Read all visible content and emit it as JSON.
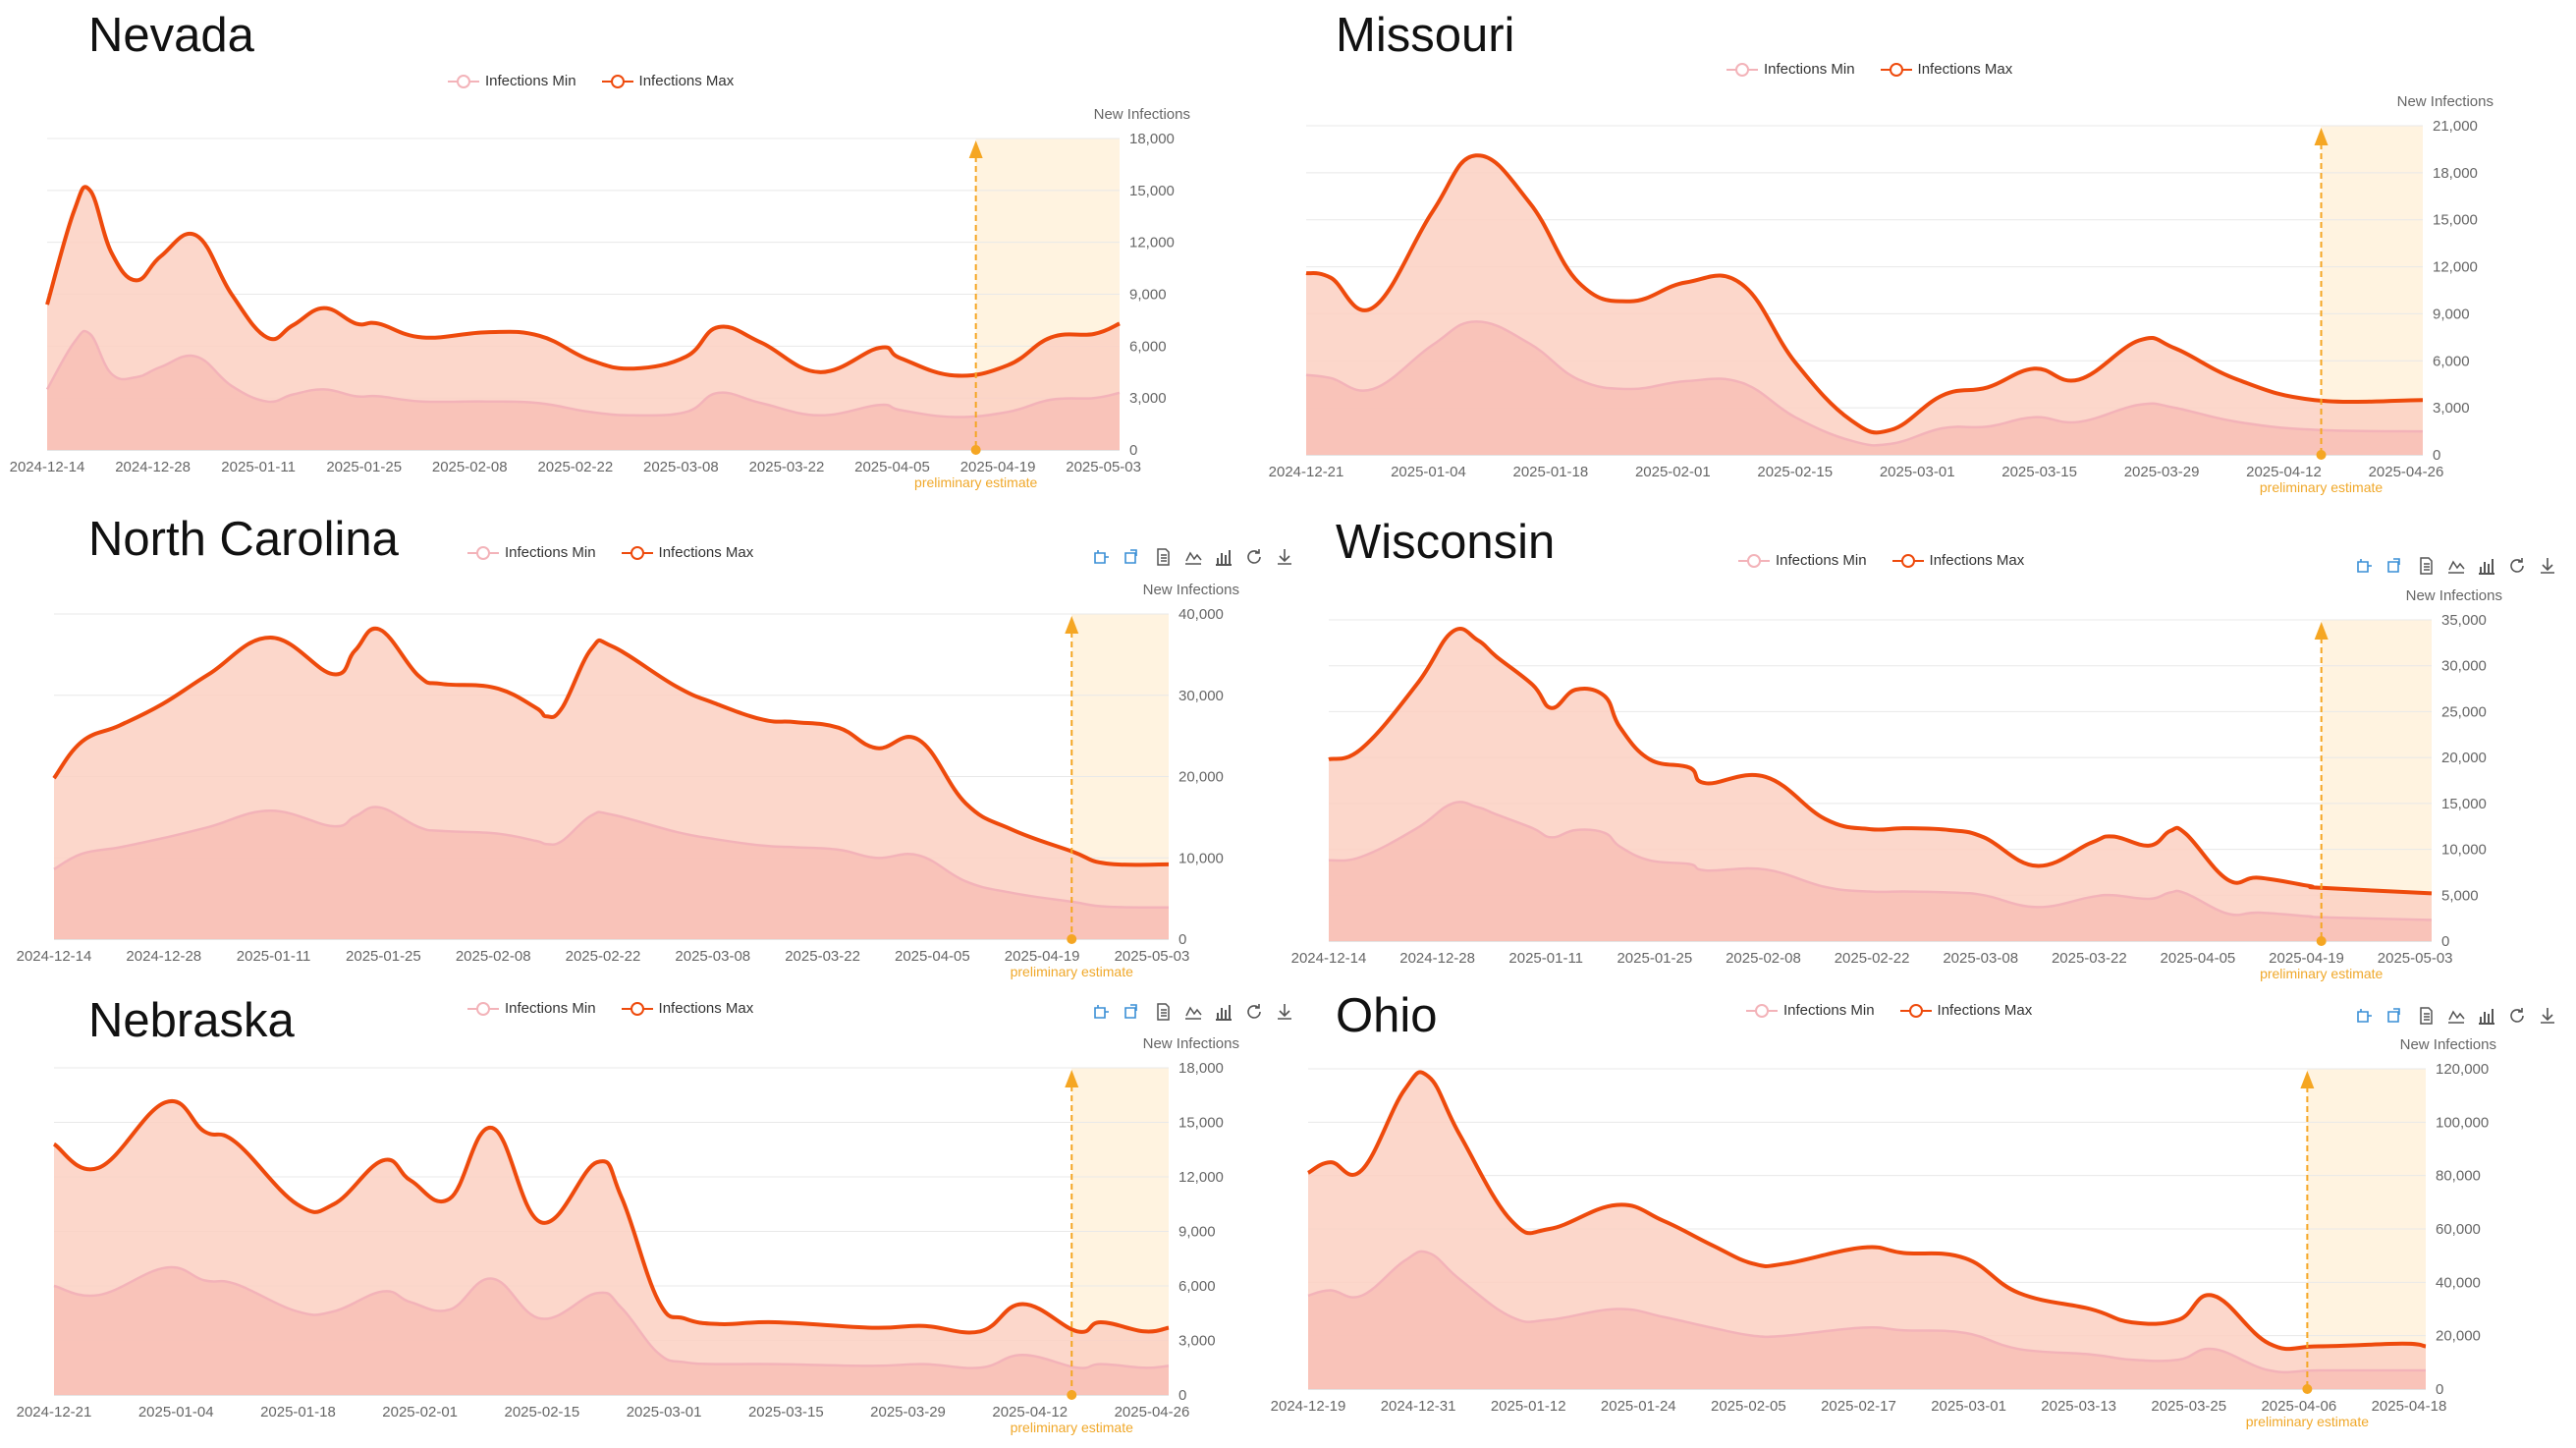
{
  "legend": {
    "min_label": "Infections Min",
    "max_label": "Infections Max"
  },
  "y_axis_name": "New Infections",
  "preliminary_label": "preliminary estimate",
  "colors": {
    "max_line": "#ee4a0c",
    "max_fill": "#fbd0c2",
    "min_line": "#f3b3b9",
    "min_fill": "#f8c0b6",
    "estimate_band": "#fff3e0",
    "estimate_marker": "#f5a623"
  },
  "toolbox_icons": [
    "zoom-icon",
    "zoom-reset-icon",
    "data-view-icon",
    "line-chart-icon",
    "bar-chart-icon",
    "refresh-icon",
    "download-icon"
  ],
  "panels": [
    {
      "title": "Nevada"
    },
    {
      "title": "Missouri"
    },
    {
      "title": "North Carolina"
    },
    {
      "title": "Wisconsin"
    },
    {
      "title": "Nebraska"
    },
    {
      "title": "Ohio"
    }
  ],
  "chart_data": [
    {
      "type": "area",
      "title": "Nevada",
      "ylabel": "New Infections",
      "ylim": [
        0,
        18000
      ],
      "y_ticks": [
        "0",
        "3,000",
        "6,000",
        "9,000",
        "12,000",
        "15,000",
        "18,000"
      ],
      "x_ticks": [
        "2024-12-14",
        "2024-12-28",
        "2025-01-11",
        "2025-01-25",
        "2025-02-08",
        "2025-02-22",
        "2025-03-08",
        "2025-03-22",
        "2025-04-05",
        "2025-04-19",
        "2025-05-03"
      ],
      "estimate_start": 0.866,
      "x": [
        0,
        0.025,
        0.04,
        0.06,
        0.083,
        0.106,
        0.139,
        0.172,
        0.205,
        0.229,
        0.258,
        0.288,
        0.309,
        0.35,
        0.41,
        0.459,
        0.506,
        0.547,
        0.596,
        0.626,
        0.666,
        0.72,
        0.776,
        0.796,
        0.846,
        0.896,
        0.936,
        0.976,
        1
      ],
      "series": [
        {
          "name": "Infections Max",
          "values": [
            8400,
            13800,
            15000,
            11400,
            9800,
            11200,
            12400,
            9000,
            6500,
            7200,
            8200,
            7300,
            7300,
            6500,
            6800,
            6600,
            5200,
            4700,
            5400,
            7100,
            6200,
            4500,
            5900,
            5300,
            4300,
            4900,
            6500,
            6700,
            7300
          ]
        },
        {
          "name": "Infections Min",
          "values": [
            3500,
            6200,
            6700,
            4400,
            4200,
            4800,
            5400,
            3700,
            2800,
            3200,
            3500,
            3100,
            3100,
            2800,
            2800,
            2700,
            2200,
            2000,
            2200,
            3300,
            2700,
            2000,
            2600,
            2300,
            1900,
            2200,
            2900,
            3000,
            3300
          ]
        }
      ]
    },
    {
      "type": "area",
      "title": "Missouri",
      "ylabel": "New Infections",
      "ylim": [
        0,
        21000
      ],
      "y_ticks": [
        "0",
        "3,000",
        "6,000",
        "9,000",
        "12,000",
        "15,000",
        "18,000",
        "21,000"
      ],
      "x_ticks": [
        "2024-12-21",
        "2025-01-04",
        "2025-01-18",
        "2025-02-01",
        "2025-02-15",
        "2025-03-01",
        "2025-03-15",
        "2025-03-29",
        "2025-04-12",
        "2025-04-26"
      ],
      "estimate_start": 0.909,
      "x": [
        0,
        0.022,
        0.06,
        0.113,
        0.152,
        0.2,
        0.244,
        0.29,
        0.34,
        0.39,
        0.438,
        0.488,
        0.524,
        0.57,
        0.61,
        0.652,
        0.692,
        0.746,
        0.778,
        0.834,
        0.903,
        1
      ],
      "series": [
        {
          "name": "Infections Max",
          "values": [
            11600,
            11300,
            9400,
            15500,
            19100,
            16100,
            11000,
            9800,
            11000,
            10900,
            5900,
            2200,
            1600,
            3800,
            4300,
            5500,
            4800,
            7300,
            6800,
            4800,
            3500,
            3500
          ]
        },
        {
          "name": "Infections Min",
          "values": [
            5100,
            4900,
            4200,
            7000,
            8500,
            7100,
            4800,
            4200,
            4700,
            4600,
            2400,
            900,
            700,
            1700,
            1800,
            2400,
            2100,
            3200,
            3000,
            2100,
            1600,
            1500
          ]
        }
      ]
    },
    {
      "type": "area",
      "title": "North Carolina",
      "ylabel": "New Infections",
      "ylim": [
        0,
        40000
      ],
      "y_ticks": [
        "0",
        "10,000",
        "20,000",
        "30,000",
        "40,000"
      ],
      "x_ticks": [
        "2024-12-14",
        "2024-12-28",
        "2025-01-11",
        "2025-01-25",
        "2025-02-08",
        "2025-02-22",
        "2025-03-08",
        "2025-03-22",
        "2025-04-05",
        "2025-04-19",
        "2025-05-03"
      ],
      "estimate_start": 0.913,
      "x": [
        0,
        0.025,
        0.059,
        0.097,
        0.139,
        0.194,
        0.25,
        0.27,
        0.292,
        0.327,
        0.348,
        0.396,
        0.432,
        0.442,
        0.456,
        0.482,
        0.501,
        0.558,
        0.593,
        0.636,
        0.665,
        0.704,
        0.738,
        0.776,
        0.818,
        0.859,
        0.913,
        0.944,
        1
      ],
      "series": [
        {
          "name": "Infections Max",
          "values": [
            19800,
            24300,
            26300,
            28900,
            32600,
            37100,
            32600,
            35500,
            38100,
            32400,
            31400,
            30900,
            28500,
            27400,
            28500,
            35700,
            36000,
            31100,
            29000,
            27000,
            26700,
            26000,
            23500,
            24500,
            16700,
            13500,
            10800,
            9300,
            9200
          ]
        },
        {
          "name": "Infections Min",
          "values": [
            8600,
            10500,
            11300,
            12400,
            13800,
            15800,
            13900,
            15100,
            16200,
            13800,
            13300,
            13000,
            12100,
            11700,
            12100,
            15200,
            15300,
            13200,
            12300,
            11500,
            11300,
            11000,
            10000,
            10300,
            7100,
            5700,
            4600,
            4000,
            3900
          ]
        }
      ]
    },
    {
      "type": "area",
      "title": "Wisconsin",
      "ylabel": "New Infections",
      "ylim": [
        0,
        35000
      ],
      "y_ticks": [
        "0",
        "5,000",
        "10,000",
        "15,000",
        "20,000",
        "25,000",
        "30,000",
        "35,000"
      ],
      "x_ticks": [
        "2024-12-14",
        "2024-12-28",
        "2025-01-11",
        "2025-01-25",
        "2025-02-08",
        "2025-02-22",
        "2025-03-08",
        "2025-03-22",
        "2025-04-05",
        "2025-04-19",
        "2025-05-03"
      ],
      "estimate_start": 0.9,
      "x": [
        0,
        0.03,
        0.08,
        0.112,
        0.135,
        0.152,
        0.185,
        0.202,
        0.224,
        0.25,
        0.264,
        0.291,
        0.327,
        0.342,
        0.396,
        0.45,
        0.49,
        0.522,
        0.563,
        0.594,
        0.642,
        0.691,
        0.711,
        0.744,
        0.763,
        0.777,
        0.815,
        0.843,
        0.889,
        0.9,
        1
      ],
      "series": [
        {
          "name": "Infections Max",
          "values": [
            19800,
            21000,
            28000,
            33700,
            32800,
            31000,
            27900,
            25400,
            27400,
            26700,
            23300,
            19800,
            18900,
            17200,
            17900,
            13300,
            12200,
            12300,
            12100,
            11300,
            8200,
            10700,
            11400,
            10400,
            12000,
            11700,
            6700,
            6900,
            6000,
            5800,
            5200
          ]
        },
        {
          "name": "Infections Min",
          "values": [
            8800,
            9200,
            12300,
            15000,
            14600,
            13800,
            12300,
            11300,
            12100,
            11800,
            10300,
            8800,
            8400,
            7700,
            7800,
            5900,
            5400,
            5400,
            5300,
            5000,
            3700,
            4800,
            5000,
            4600,
            5300,
            5200,
            3000,
            3100,
            2700,
            2600,
            2300
          ]
        }
      ]
    },
    {
      "type": "area",
      "title": "Nebraska",
      "ylabel": "New Infections",
      "ylim": [
        0,
        18000
      ],
      "y_ticks": [
        "0",
        "3,000",
        "6,000",
        "9,000",
        "12,000",
        "15,000",
        "18,000"
      ],
      "x_ticks": [
        "2024-12-21",
        "2025-01-04",
        "2025-01-18",
        "2025-02-01",
        "2025-02-15",
        "2025-03-01",
        "2025-03-15",
        "2025-03-29",
        "2025-04-12",
        "2025-04-26"
      ],
      "estimate_start": 0.913,
      "x": [
        0,
        0.04,
        0.1,
        0.135,
        0.163,
        0.218,
        0.251,
        0.295,
        0.32,
        0.355,
        0.393,
        0.437,
        0.487,
        0.509,
        0.542,
        0.566,
        0.598,
        0.647,
        0.734,
        0.78,
        0.831,
        0.869,
        0.918,
        0.939,
        0.978,
        1
      ],
      "series": [
        {
          "name": "Infections Max",
          "values": [
            13800,
            12500,
            16100,
            14500,
            13900,
            10500,
            10500,
            12900,
            11800,
            10800,
            14700,
            9500,
            12800,
            10900,
            5200,
            4200,
            3900,
            4000,
            3700,
            3800,
            3500,
            5000,
            3500,
            4000,
            3500,
            3700
          ]
        },
        {
          "name": "Infections Min",
          "values": [
            6000,
            5500,
            7000,
            6300,
            6100,
            4600,
            4600,
            5700,
            5100,
            4700,
            6400,
            4200,
            5600,
            4800,
            2300,
            1800,
            1700,
            1700,
            1600,
            1700,
            1500,
            2200,
            1500,
            1700,
            1500,
            1600
          ]
        }
      ]
    },
    {
      "type": "area",
      "title": "Ohio",
      "ylabel": "New Infections",
      "ylim": [
        0,
        120000
      ],
      "y_ticks": [
        "0",
        "20,000",
        "40,000",
        "60,000",
        "80,000",
        "100,000",
        "120,000"
      ],
      "x_ticks": [
        "2024-12-19",
        "2024-12-31",
        "2025-01-12",
        "2025-01-24",
        "2025-02-05",
        "2025-02-17",
        "2025-03-01",
        "2025-03-13",
        "2025-03-25",
        "2025-04-06",
        "2025-04-18"
      ],
      "estimate_start": 0.894,
      "x": [
        0,
        0.02,
        0.048,
        0.086,
        0.108,
        0.136,
        0.182,
        0.216,
        0.276,
        0.318,
        0.361,
        0.398,
        0.427,
        0.496,
        0.533,
        0.588,
        0.636,
        0.7,
        0.737,
        0.779,
        0.81,
        0.86,
        0.904,
        0.979,
        1
      ],
      "series": [
        {
          "name": "Infections Max",
          "values": [
            81000,
            85000,
            82000,
            112000,
            117000,
            95000,
            63000,
            60000,
            69000,
            63000,
            54000,
            47000,
            47000,
            53000,
            51000,
            49000,
            36000,
            30000,
            25000,
            26000,
            35000,
            17000,
            16000,
            17000,
            16000
          ]
        },
        {
          "name": "Infections Min",
          "values": [
            35000,
            37000,
            35000,
            48000,
            51000,
            41000,
            27000,
            26000,
            30000,
            27000,
            23000,
            20000,
            20000,
            23000,
            22000,
            21000,
            15000,
            13000,
            11000,
            11000,
            15000,
            7000,
            7000,
            7000,
            7000
          ]
        }
      ]
    }
  ]
}
